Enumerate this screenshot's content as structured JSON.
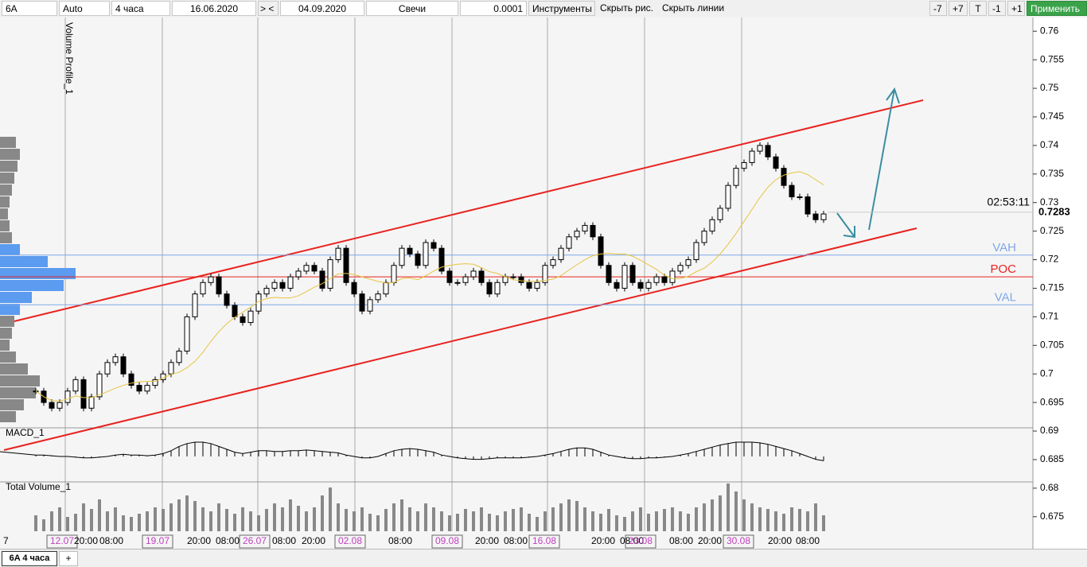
{
  "toolbar": {
    "symbol": "6A",
    "scale": "Auto",
    "timeframe": "4 часа",
    "date_from": "16.06.2020",
    "nav": "> <",
    "date_to": "04.09.2020",
    "chart_type": "Свечи",
    "tick": "0.0001",
    "tools": "Инструменты",
    "hide_drawings": "Скрыть рис.",
    "hide_lines": "Скрыть линии",
    "minus7": "-7",
    "plus7": "+7",
    "t": "T",
    "minus1": "-1",
    "plus1": "+1",
    "apply": "Применить"
  },
  "tabs": {
    "active": "6A 4 часа",
    "add": "+"
  },
  "labels": {
    "volume_profile": "Volume Profile_1",
    "macd": "MACD_1",
    "total_volume": "Total Volume_1",
    "vah": "VAH",
    "poc": "POC",
    "val": "VAL",
    "timer": "02:53:11",
    "last_price": "0.7283"
  },
  "x_labels": [
    "7",
    "12.07",
    "20:00",
    "08:00",
    "19.07",
    "20:00",
    "08:00",
    "26.07",
    "08:00",
    "20:00",
    "02.08",
    "08:00",
    "09.08",
    "20:00",
    "08:00",
    "16.08",
    "20:00",
    "08:00",
    "23.08",
    "08:00",
    "20:00",
    "30.08",
    "20:00",
    "08:00"
  ],
  "chart_data": {
    "type": "candlestick",
    "ylim": [
      0.6694,
      0.7624
    ],
    "yticks": [
      0.76,
      0.755,
      0.75,
      0.745,
      0.74,
      0.735,
      0.73,
      0.725,
      0.72,
      0.715,
      0.71,
      0.705,
      0.7,
      0.695,
      0.69,
      0.685,
      0.68,
      0.675
    ],
    "levels": {
      "vah": 0.7208,
      "poc": 0.717,
      "val": 0.7121,
      "last": 0.7283
    },
    "closes": [
      0.697,
      0.695,
      0.694,
      0.695,
      0.697,
      0.699,
      0.694,
      0.696,
      0.7,
      0.702,
      0.703,
      0.7,
      0.698,
      0.697,
      0.698,
      0.699,
      0.7,
      0.702,
      0.704,
      0.71,
      0.714,
      0.716,
      0.717,
      0.714,
      0.712,
      0.71,
      0.709,
      0.711,
      0.714,
      0.715,
      0.716,
      0.715,
      0.717,
      0.718,
      0.719,
      0.718,
      0.715,
      0.72,
      0.722,
      0.716,
      0.714,
      0.711,
      0.713,
      0.714,
      0.716,
      0.719,
      0.722,
      0.721,
      0.719,
      0.723,
      0.722,
      0.718,
      0.716,
      0.716,
      0.717,
      0.718,
      0.716,
      0.714,
      0.716,
      0.717,
      0.717,
      0.716,
      0.715,
      0.716,
      0.719,
      0.72,
      0.722,
      0.724,
      0.725,
      0.726,
      0.724,
      0.719,
      0.716,
      0.715,
      0.719,
      0.716,
      0.715,
      0.716,
      0.717,
      0.716,
      0.718,
      0.719,
      0.72,
      0.723,
      0.725,
      0.727,
      0.729,
      0.733,
      0.736,
      0.737,
      0.739,
      0.74,
      0.738,
      0.736,
      0.733,
      0.731,
      0.731,
      0.728,
      0.727,
      0.728
    ],
    "macd": [
      0.1,
      0.1,
      0.05,
      0,
      0,
      -0.05,
      -0.1,
      -0.1,
      -0.05,
      0,
      0.1,
      0.15,
      0.1,
      0.1,
      0.05,
      0.1,
      0.2,
      0.4,
      0.7,
      0.9,
      1,
      1,
      0.9,
      0.7,
      0.5,
      0.3,
      0.2,
      0.3,
      0.4,
      0.4,
      0.35,
      0.35,
      0.4,
      0.4,
      0.45,
      0.4,
      0.35,
      0.3,
      0.25,
      0.1,
      0,
      -0.1,
      -0.1,
      0,
      0.2,
      0.4,
      0.5,
      0.55,
      0.5,
      0.4,
      0.3,
      0.1,
      0,
      -0.1,
      -0.15,
      -0.2,
      -0.2,
      -0.15,
      -0.1,
      -0.1,
      -0.1,
      -0.1,
      -0.05,
      0,
      0.1,
      0.2,
      0.35,
      0.5,
      0.6,
      0.6,
      0.5,
      0.3,
      0.1,
      0,
      -0.1,
      -0.15,
      -0.15,
      -0.1,
      -0.1,
      -0.05,
      0,
      0.1,
      0.2,
      0.35,
      0.5,
      0.65,
      0.8,
      0.9,
      1,
      1,
      1,
      0.95,
      0.85,
      0.7,
      0.55,
      0.4,
      0.2,
      0,
      -0.2,
      -0.3
    ],
    "volume": [
      20,
      15,
      25,
      30,
      18,
      22,
      35,
      28,
      40,
      25,
      30,
      20,
      18,
      22,
      25,
      30,
      28,
      35,
      40,
      45,
      38,
      30,
      25,
      35,
      28,
      22,
      30,
      25,
      20,
      28,
      35,
      30,
      40,
      32,
      25,
      30,
      45,
      55,
      35,
      28,
      25,
      30,
      22,
      20,
      28,
      35,
      40,
      30,
      25,
      35,
      30,
      25,
      20,
      22,
      28,
      25,
      30,
      22,
      20,
      25,
      28,
      30,
      22,
      18,
      25,
      30,
      35,
      40,
      38,
      30,
      25,
      22,
      28,
      20,
      18,
      25,
      30,
      22,
      25,
      28,
      30,
      25,
      22,
      30,
      35,
      40,
      45,
      60,
      50,
      40,
      35,
      30,
      28,
      25,
      22,
      30,
      28,
      25,
      35,
      20
    ],
    "profile": [
      20,
      25,
      22,
      18,
      15,
      12,
      10,
      12,
      15,
      25,
      60,
      95,
      80,
      40,
      25,
      18,
      15,
      12,
      20,
      35,
      50,
      45,
      30,
      20
    ]
  }
}
